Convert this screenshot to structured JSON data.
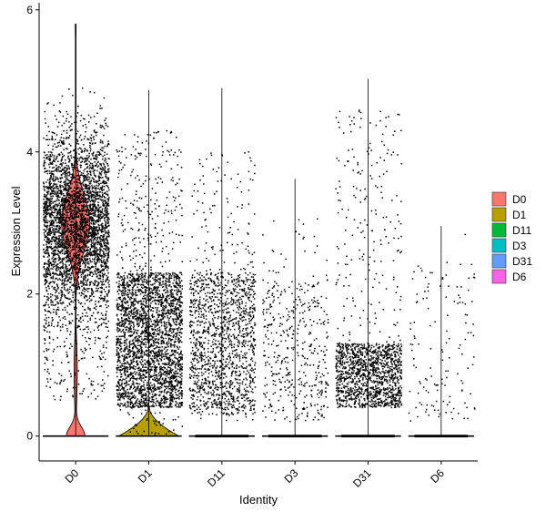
{
  "chart_data": {
    "type": "violin",
    "xlabel": "Identity",
    "ylabel": "Expression Level",
    "ylim": [
      -0.35,
      6.1
    ],
    "yticks": [
      "0",
      "2",
      "4",
      "6"
    ],
    "categories": [
      "D0",
      "D1",
      "D11",
      "D3",
      "D31",
      "D6"
    ],
    "colors": [
      "#F8766D",
      "#B79F00",
      "#00BA38",
      "#00BFC4",
      "#619CFF",
      "#F564E3"
    ],
    "legend": {
      "position": "right",
      "entries": [
        "D0",
        "D1",
        "D11",
        "D3",
        "D31",
        "D6"
      ]
    },
    "grid": false,
    "groups": [
      {
        "name": "D0",
        "max": 5.8,
        "points": 3800,
        "dense_range": [
          1.7,
          3.9
        ],
        "body_range": [
          0.5,
          5.7
        ],
        "zeros": 60,
        "violin_peak": 3.0,
        "violin_peak_halfwidth": 0.43,
        "violin_zero_halfwidth": 0.28
      },
      {
        "name": "D1",
        "max": 4.87,
        "points": 3000,
        "dense_range": [
          0.4,
          2.3
        ],
        "body_range": [
          0.0,
          4.3
        ],
        "zeros": 400,
        "violin_peak": 0.2,
        "violin_peak_halfwidth": 0.45,
        "violin_zero_halfwidth": 0.45
      },
      {
        "name": "D11",
        "max": 4.9,
        "points": 1500,
        "dense_range": [
          0.3,
          2.3
        ],
        "body_range": [
          0.2,
          4.0
        ],
        "zeros": 500,
        "violin_peak": 0.0,
        "violin_peak_halfwidth": 0.4,
        "violin_zero_halfwidth": 0.4
      },
      {
        "name": "D3",
        "max": 3.62,
        "points": 450,
        "dense_range": [
          0.2,
          2.2
        ],
        "body_range": [
          0.2,
          3.1
        ],
        "zeros": 500,
        "violin_peak": 0.0,
        "violin_peak_halfwidth": 0.4,
        "violin_zero_halfwidth": 0.4
      },
      {
        "name": "D31",
        "max": 5.03,
        "points": 1500,
        "dense_range": [
          0.4,
          1.3
        ],
        "body_range": [
          0.4,
          4.6
        ],
        "zeros": 500,
        "violin_peak": 0.0,
        "violin_peak_halfwidth": 0.4,
        "violin_zero_halfwidth": 0.4
      },
      {
        "name": "D6",
        "max": 2.96,
        "points": 140,
        "dense_range": [
          0.2,
          2.4
        ],
        "body_range": [
          0.2,
          2.9
        ],
        "zeros": 500,
        "violin_peak": 0.0,
        "violin_peak_halfwidth": 0.4,
        "violin_zero_halfwidth": 0.4
      }
    ]
  }
}
